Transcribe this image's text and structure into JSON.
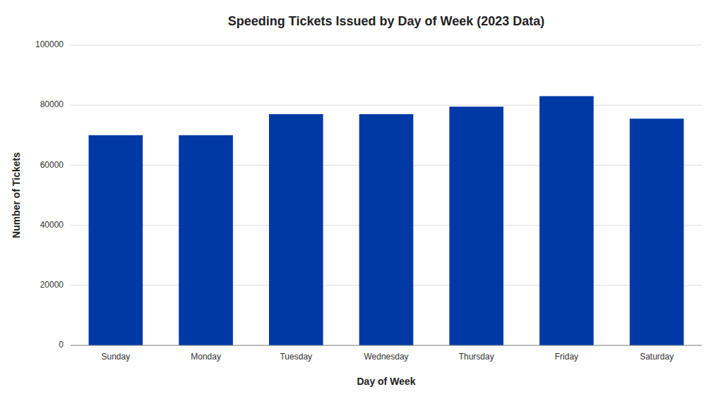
{
  "chart_data": {
    "type": "bar",
    "title": "Speeding Tickets Issued by Day of Week (2023 Data)",
    "xlabel": "Day of Week",
    "ylabel": "Number of Tickets",
    "categories": [
      "Sunday",
      "Monday",
      "Tuesday",
      "Wednesday",
      "Thursday",
      "Friday",
      "Saturday"
    ],
    "values": [
      70000,
      70000,
      77000,
      77000,
      79500,
      83000,
      75500
    ],
    "color": "#0039A6",
    "ylim": [
      0,
      100000
    ],
    "yticks": [
      0,
      20000,
      40000,
      60000,
      80000,
      100000
    ],
    "grid": true
  }
}
